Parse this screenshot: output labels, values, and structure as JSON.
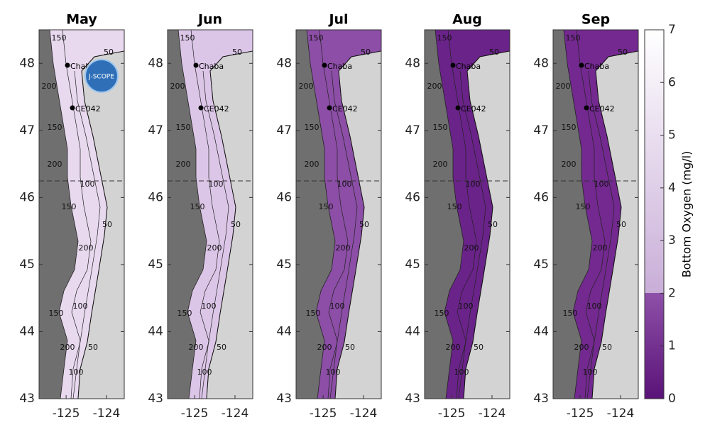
{
  "panels": [
    {
      "title": "May",
      "color": "#e8d9ef"
    },
    {
      "title": "Jun",
      "color": "#dcc6e8"
    },
    {
      "title": "Jul",
      "color": "#8c4ea6"
    },
    {
      "title": "Aug",
      "color": "#6a2389"
    },
    {
      "title": "Sep",
      "color": "#73298f"
    }
  ],
  "axes": {
    "xlim": [
      -125.67,
      -123.56
    ],
    "ylim": [
      43,
      48.5
    ],
    "xticks": [
      -125,
      -124
    ],
    "yticks": [
      43,
      44,
      45,
      46,
      47,
      48
    ]
  },
  "stations": [
    "Chaba",
    "CE042"
  ],
  "contour_labels": [
    150,
    50,
    200,
    100
  ],
  "logo": "J-SCOPE",
  "colorbar": {
    "label": "Bottom Oxygen (mg/l)",
    "range": [
      0,
      7
    ],
    "ticks": [
      0,
      1,
      2,
      3,
      4,
      5,
      6,
      7
    ]
  }
}
